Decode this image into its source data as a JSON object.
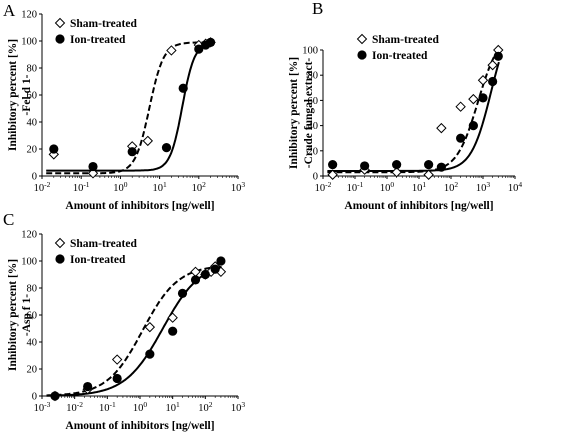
{
  "colors": {
    "ink": "#000000",
    "paper": "#ffffff"
  },
  "chart_data": [
    {
      "panel": "A",
      "type": "scatter",
      "x_scale": "log",
      "xlim": [
        0.01,
        1000
      ],
      "ylim": [
        0,
        120
      ],
      "x_ticks": [
        0.01,
        0.1,
        1,
        10,
        100,
        1000
      ],
      "x_tick_labels": [
        "10-2",
        "10-1",
        "100",
        "101",
        "102",
        "103"
      ],
      "y_ticks": [
        0,
        20,
        40,
        60,
        80,
        100,
        120
      ],
      "y_tick_labels": [
        "0",
        "20",
        "40",
        "60",
        "80",
        "100",
        "120"
      ],
      "xlabel": "Amount of inhibitors [ng/well]",
      "ylabel": [
        "Inhibitory percent [%]",
        "-Fel d 1-"
      ],
      "legend_position": "top-left",
      "series": [
        {
          "name": "Sham-treated",
          "marker": "open-diamond",
          "line": "dashed",
          "x": [
            0.02,
            0.2,
            2,
            5,
            20,
            100,
            150,
            200
          ],
          "y": [
            16,
            2,
            22,
            26,
            93,
            97,
            98,
            99
          ],
          "fit": {
            "bottom": 2,
            "top": 99,
            "ec50": 5.5,
            "hill": 2.4
          }
        },
        {
          "name": "Ion-treated",
          "marker": "filled-circle",
          "line": "solid",
          "x": [
            0.02,
            0.2,
            2,
            15,
            40,
            100,
            150,
            200
          ],
          "y": [
            20,
            7,
            18,
            21,
            65,
            94,
            97,
            99
          ],
          "fit": {
            "bottom": 4,
            "top": 99,
            "ec50": 38,
            "hill": 2.8
          }
        }
      ]
    },
    {
      "panel": "B",
      "type": "scatter",
      "x_scale": "log",
      "xlim": [
        0.01,
        10000
      ],
      "ylim": [
        0,
        100
      ],
      "x_ticks": [
        0.01,
        0.1,
        1,
        10,
        100,
        1000,
        10000
      ],
      "x_tick_labels": [
        "10-2",
        "10-1",
        "100",
        "101",
        "102",
        "103",
        "104"
      ],
      "y_ticks": [
        0,
        20,
        40,
        60,
        80,
        100
      ],
      "y_tick_labels": [
        "0",
        "20",
        "40",
        "60",
        "80",
        "100"
      ],
      "xlabel": "Amount of inhibitors [ng/well]",
      "ylabel": [
        "Inhibitory percent [%]",
        "-Crude fungal extract-"
      ],
      "legend_position": "top-left",
      "series": [
        {
          "name": "Sham-treated",
          "marker": "open-diamond",
          "line": "dashed",
          "x": [
            0.02,
            0.2,
            2,
            20,
            50,
            200,
            500,
            1000,
            2000,
            3000
          ],
          "y": [
            1,
            5,
            3,
            1,
            38,
            55,
            61,
            76,
            88,
            100
          ],
          "fit": {
            "bottom": 3,
            "top": 115,
            "ec50": 700,
            "hill": 1.3
          }
        },
        {
          "name": "Ion-treated",
          "marker": "filled-circle",
          "line": "solid",
          "x": [
            0.02,
            0.2,
            2,
            20,
            50,
            200,
            500,
            1000,
            2000,
            3000
          ],
          "y": [
            9,
            8,
            9,
            9,
            7,
            30,
            40,
            62,
            75,
            95
          ],
          "fit": {
            "bottom": 4,
            "top": 130,
            "ec50": 1800,
            "hill": 1.4
          }
        }
      ]
    },
    {
      "panel": "C",
      "type": "scatter",
      "x_scale": "log",
      "xlim": [
        0.001,
        1000
      ],
      "ylim": [
        0,
        120
      ],
      "x_ticks": [
        0.001,
        0.01,
        0.1,
        1,
        10,
        100,
        1000
      ],
      "x_tick_labels": [
        "10-3",
        "10-2",
        "10-1",
        "100",
        "101",
        "102",
        "103"
      ],
      "y_ticks": [
        0,
        20,
        40,
        60,
        80,
        100,
        120
      ],
      "y_tick_labels": [
        "0",
        "20",
        "40",
        "60",
        "80",
        "100",
        "120"
      ],
      "xlabel": "Amount of inhibitors [ng/well]",
      "ylabel": [
        "Inhibitory percent [%]",
        "-Asp f 1-"
      ],
      "legend_position": "top-left",
      "series": [
        {
          "name": "Sham-treated",
          "marker": "open-diamond",
          "line": "dashed",
          "x": [
            0.0025,
            0.025,
            0.2,
            2,
            10,
            50,
            100,
            150,
            200,
            300
          ],
          "y": [
            0,
            5,
            27,
            51,
            58,
            92,
            90,
            92,
            96,
            92
          ],
          "fit": {
            "bottom": 0,
            "top": 97,
            "ec50": 1.2,
            "hill": 0.8
          }
        },
        {
          "name": "Ion-treated",
          "marker": "filled-circle",
          "line": "solid",
          "x": [
            0.0025,
            0.025,
            0.2,
            2,
            10,
            20,
            50,
            100,
            200,
            300
          ],
          "y": [
            0,
            7,
            13,
            31,
            48,
            76,
            86,
            90,
            94,
            100
          ],
          "fit": {
            "bottom": 0,
            "top": 100,
            "ec50": 5,
            "hill": 0.75
          }
        }
      ]
    }
  ]
}
